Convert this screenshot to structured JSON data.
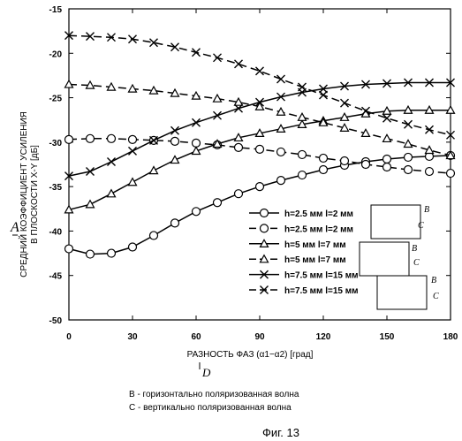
{
  "chart_data": {
    "type": "line",
    "xlabel": "РАЗНОСТЬ ФАЗ (α1−α2) [град]",
    "ylabel_lines": [
      "СРЕДНИЙ КОЭФФИЦИЕНТ УСИЛЕНИЯ",
      "В ПЛОСКОСТИ X-Y [дБ]"
    ],
    "axis_letter_y": "A",
    "axis_letter_x": "D",
    "xlim": [
      0,
      180
    ],
    "ylim": [
      -50,
      -15
    ],
    "xticks": [
      0,
      30,
      60,
      90,
      120,
      150,
      180
    ],
    "yticks": [
      -15,
      -20,
      -25,
      -30,
      -35,
      -40,
      -45,
      -50
    ],
    "x": [
      0,
      10,
      20,
      30,
      40,
      50,
      60,
      70,
      80,
      90,
      100,
      110,
      120,
      130,
      140,
      150,
      160,
      170,
      180
    ],
    "series": [
      {
        "name": "h=2.5 мм l=2 мм",
        "marker": "circle",
        "dash": "solid",
        "values": [
          -42.0,
          -42.6,
          -42.5,
          -41.8,
          -40.5,
          -39.1,
          -37.8,
          -36.8,
          -35.8,
          -35.0,
          -34.3,
          -33.7,
          -33.1,
          -32.6,
          -32.2,
          -31.9,
          -31.7,
          -31.6,
          -31.5
        ]
      },
      {
        "name": "h=2.5 мм l=2 мм",
        "marker": "circle",
        "dash": "dashed",
        "values": [
          -29.7,
          -29.6,
          -29.6,
          -29.7,
          -29.8,
          -29.9,
          -30.1,
          -30.3,
          -30.6,
          -30.8,
          -31.1,
          -31.4,
          -31.8,
          -32.1,
          -32.5,
          -32.8,
          -33.1,
          -33.3,
          -33.5
        ]
      },
      {
        "name": "h=5 мм l=7 мм",
        "marker": "triangle",
        "dash": "solid",
        "values": [
          -37.6,
          -37.0,
          -35.8,
          -34.5,
          -33.2,
          -32.0,
          -31.0,
          -30.2,
          -29.5,
          -29.0,
          -28.5,
          -28.0,
          -27.6,
          -27.2,
          -26.8,
          -26.5,
          -26.4,
          -26.4,
          -26.4
        ]
      },
      {
        "name": "h=5 мм l=7 мм",
        "marker": "triangle",
        "dash": "dashed",
        "values": [
          -23.5,
          -23.6,
          -23.8,
          -24.0,
          -24.2,
          -24.5,
          -24.8,
          -25.1,
          -25.5,
          -26.0,
          -26.6,
          -27.2,
          -27.8,
          -28.4,
          -29.0,
          -29.6,
          -30.2,
          -30.9,
          -31.5
        ]
      },
      {
        "name": "h=7.5 мм l=15 мм",
        "marker": "x",
        "dash": "solid",
        "values": [
          -33.8,
          -33.3,
          -32.2,
          -31.0,
          -29.8,
          -28.7,
          -27.8,
          -27.0,
          -26.2,
          -25.5,
          -24.9,
          -24.4,
          -24.0,
          -23.7,
          -23.5,
          -23.4,
          -23.3,
          -23.3,
          -23.3
        ]
      },
      {
        "name": "h=7.5 мм l=15 мм",
        "marker": "x",
        "dash": "dashed",
        "values": [
          -18.0,
          -18.1,
          -18.2,
          -18.4,
          -18.8,
          -19.3,
          -19.9,
          -20.5,
          -21.2,
          -22.0,
          -22.9,
          -23.8,
          -24.7,
          -25.6,
          -26.5,
          -27.3,
          -28.0,
          -28.6,
          -29.2
        ]
      }
    ]
  },
  "legend_note_letters": [
    "B",
    "C",
    "B",
    "C",
    "B",
    "C"
  ],
  "captions": {
    "line_b": "B - горизонтально поляризованная волна",
    "line_c": "C - вертикально поляризованная волна",
    "figure": "Фиг. 13"
  }
}
